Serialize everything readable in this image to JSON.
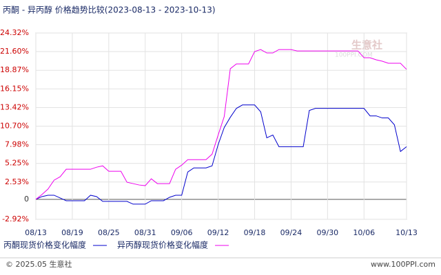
{
  "chart_data": {
    "type": "line",
    "title": "丙酮 - 异丙醇 价格趋势比较(2023-08-13 - 2023-10-13)",
    "watermark": [
      "生意社",
      "100PPI.COM"
    ],
    "footer_left": "© 2025.05 生意社",
    "footer_right": "www.100PPI.com",
    "categories": [
      "08/13",
      null,
      null,
      null,
      null,
      null,
      "08/19",
      null,
      null,
      null,
      null,
      null,
      "08/25",
      null,
      null,
      null,
      null,
      null,
      "08/31",
      null,
      null,
      null,
      null,
      null,
      "09/06",
      null,
      null,
      null,
      null,
      null,
      "09/12",
      null,
      null,
      null,
      null,
      null,
      "09/18",
      null,
      null,
      null,
      null,
      null,
      "09/24",
      null,
      null,
      null,
      null,
      null,
      "09/30",
      null,
      null,
      null,
      null,
      null,
      "10/06",
      null,
      null,
      null,
      null,
      null,
      null,
      "10/13"
    ],
    "ylim": [
      -2.92,
      24.32
    ],
    "yticks": [
      {
        "value": 24.32,
        "label": "24.32%"
      },
      {
        "value": 21.6,
        "label": "21.60%"
      },
      {
        "value": 18.87,
        "label": "18.87%"
      },
      {
        "value": 16.15,
        "label": "16.15%"
      },
      {
        "value": 13.42,
        "label": "13.42%"
      },
      {
        "value": 10.7,
        "label": "10.70%"
      },
      {
        "value": 7.98,
        "label": "7.98%"
      },
      {
        "value": 5.25,
        "label": "5.25%"
      },
      {
        "value": 2.53,
        "label": "2.53%"
      },
      0,
      {
        "value": -2.92,
        "label": "-2.92%"
      }
    ],
    "grid": true,
    "series": [
      {
        "name": "丙酮现货价格变化幅度",
        "color": "#0000cc",
        "values": [
          0,
          0.4,
          0.6,
          0.6,
          0.2,
          -0.2,
          -0.2,
          -0.2,
          -0.2,
          0.6,
          0.4,
          -0.3,
          -0.3,
          -0.3,
          -0.3,
          -0.3,
          -0.7,
          -0.7,
          -0.7,
          -0.2,
          -0.2,
          -0.2,
          0.3,
          0.6,
          0.6,
          4.0,
          4.6,
          4.6,
          4.6,
          4.9,
          8.0,
          10.5,
          12.0,
          13.3,
          13.8,
          13.8,
          13.8,
          12.8,
          9.0,
          9.4,
          7.7,
          7.7,
          7.7,
          7.7,
          7.7,
          13.0,
          13.3,
          13.3,
          13.3,
          13.3,
          13.3,
          13.3,
          13.3,
          13.3,
          13.3,
          12.2,
          12.2,
          11.9,
          11.9,
          10.9,
          7.0,
          7.7
        ]
      },
      {
        "name": "异丙醇现货价格变化幅度",
        "color": "#ee00ee",
        "values": [
          0,
          0.7,
          1.5,
          2.8,
          3.3,
          4.4,
          4.4,
          4.4,
          4.4,
          4.4,
          4.7,
          4.9,
          4.1,
          4.1,
          4.1,
          2.5,
          2.3,
          2.1,
          2.0,
          3.0,
          2.3,
          2.3,
          2.3,
          4.4,
          5.0,
          5.8,
          5.8,
          5.8,
          5.8,
          6.6,
          9.4,
          12.1,
          19.1,
          19.8,
          19.8,
          19.8,
          21.6,
          21.9,
          21.4,
          21.4,
          21.9,
          21.9,
          21.9,
          21.7,
          21.7,
          21.7,
          21.7,
          21.7,
          21.7,
          21.7,
          21.7,
          21.7,
          21.7,
          21.7,
          20.7,
          20.7,
          20.4,
          20.2,
          19.9,
          19.9,
          19.9,
          19.0
        ]
      }
    ]
  }
}
